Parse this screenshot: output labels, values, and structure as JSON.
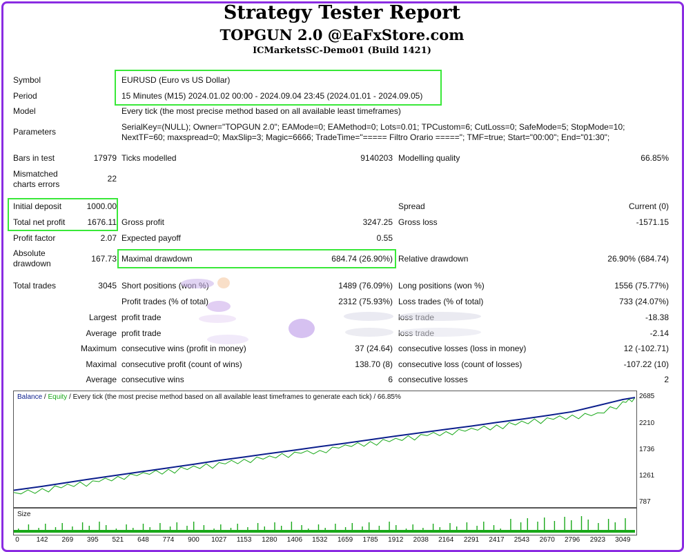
{
  "header": {
    "title": "Strategy Tester Report",
    "subtitle": "TOPGUN 2.0 @EaFxStore.com",
    "server": "ICMarketsSC-Demo01 (Build 1421)"
  },
  "info": {
    "symbol_label": "Symbol",
    "symbol_value": "EURUSD (Euro vs US Dollar)",
    "period_label": "Period",
    "period_value": "15 Minutes (M15) 2024.01.02 00:00 - 2024.09.04 23:45 (2024.01.01 - 2024.09.05)",
    "model_label": "Model",
    "model_value": "Every tick (the most precise method based on all available least timeframes)",
    "parameters_label": "Parameters",
    "parameters_line1": "SerialKey=(NULL); Owner=\"TOPGUN 2.0\"; EAMode=0; EAMethod=0; Lots=0.01; TPCustom=6; CutLoss=0; SafeMode=5; StopMode=10;",
    "parameters_line2": "NextTF=60; maxspread=0; MaxSlip=3; Magic=6666; TradeTime=\"===== Filtro Orario =====\"; TMF=true; Start=\"00:00\"; End=\"01:30\";"
  },
  "stats": {
    "bars_label": "Bars in test",
    "bars_value": "17979",
    "ticks_label": "Ticks modelled",
    "ticks_value": "9140203",
    "quality_label": "Modelling quality",
    "quality_value": "66.85%",
    "mismatch_label1": "Mismatched",
    "mismatch_label2": "charts errors",
    "mismatch_value": "22",
    "deposit_label": "Initial deposit",
    "deposit_value": "1000.00",
    "spread_label": "Spread",
    "spread_value": "Current (0)",
    "netprofit_label": "Total net profit",
    "netprofit_value": "1676.11",
    "grossprofit_label": "Gross profit",
    "grossprofit_value": "3247.25",
    "grossloss_label": "Gross loss",
    "grossloss_value": "-1571.15",
    "pf_label": "Profit factor",
    "pf_value": "2.07",
    "payoff_label": "Expected payoff",
    "payoff_value": "0.55",
    "absdd_label1": "Absolute",
    "absdd_label2": "drawdown",
    "absdd_value": "167.73",
    "maxdd_label": "Maximal drawdown",
    "maxdd_value": "684.74 (26.90%)",
    "reldd_label": "Relative drawdown",
    "reldd_value": "26.90% (684.74)"
  },
  "trades": {
    "total_label": "Total trades",
    "total_value": "3045",
    "short_label": "Short positions (won %)",
    "short_value": "1489 (76.09%)",
    "long_label": "Long positions (won %)",
    "long_value": "1556 (75.77%)",
    "profit_trades_label": "Profit trades (% of total)",
    "profit_trades_value": "2312 (75.93%)",
    "loss_trades_label": "Loss trades (% of total)",
    "loss_trades_value": "733 (24.07%)",
    "largest_label": "Largest",
    "largest_profit_label": "profit trade",
    "largest_profit_value": "",
    "largest_loss_label": "loss trade",
    "largest_loss_value": "-18.38",
    "average_label": "Average",
    "average_profit_label": "profit trade",
    "average_profit_value": "",
    "average_loss_label": "loss trade",
    "average_loss_value": "-2.14",
    "maximum_label": "Maximum",
    "max_cons_wins_label": "consecutive wins (profit in money)",
    "max_cons_wins_value": "37 (24.64)",
    "max_cons_losses_label": "consecutive losses (loss in money)",
    "max_cons_losses_value": "12 (-102.71)",
    "maximal_label": "Maximal",
    "maximal_profit_label": "consecutive profit (count of wins)",
    "maximal_profit_value": "138.70 (8)",
    "maximal_loss_label": "consecutive loss (count of losses)",
    "maximal_loss_value": "-107.22 (10)",
    "average2_label": "Average",
    "avg_cons_wins_label": "consecutive wins",
    "avg_cons_wins_value": "6",
    "avg_cons_losses_label": "consecutive losses",
    "avg_cons_losses_value": "2"
  },
  "chart_legend": {
    "balance": "Balance",
    "sep": " / ",
    "equity": "Equity",
    "desc": " / Every tick (the most precise method based on all available least timeframes to generate each tick) / 66.85%",
    "size": "Size"
  },
  "colors": {
    "balance": "#0b1e8c",
    "equity": "#18a818",
    "highlight": "#38e838",
    "frame": "#8a2be2"
  },
  "chart_data": {
    "type": "line",
    "title": "",
    "xlabel": "",
    "ylabel": "",
    "x_ticks": [
      0,
      142,
      269,
      395,
      521,
      648,
      774,
      900,
      1027,
      1153,
      1280,
      1406,
      1532,
      1659,
      1785,
      1912,
      2038,
      2164,
      2291,
      2417,
      2543,
      2670,
      2796,
      2923,
      3049
    ],
    "y_ticks": [
      787,
      1261,
      1736,
      2210,
      2685
    ],
    "xlim": [
      0,
      3110
    ],
    "ylim": [
      720,
      2790
    ],
    "series": [
      {
        "name": "Balance",
        "x": [
          0,
          142,
          269,
          395,
          521,
          648,
          774,
          900,
          1027,
          1153,
          1280,
          1406,
          1532,
          1659,
          1785,
          1912,
          2038,
          2164,
          2291,
          2417,
          2543,
          2670,
          2796,
          2923,
          3049,
          3110
        ],
        "values": [
          1000,
          1070,
          1140,
          1210,
          1275,
          1340,
          1405,
          1470,
          1540,
          1600,
          1665,
          1725,
          1790,
          1850,
          1915,
          1980,
          2040,
          2100,
          2160,
          2225,
          2285,
          2350,
          2420,
          2530,
          2640,
          2676
        ]
      },
      {
        "name": "Equity",
        "x": [
          0,
          142,
          269,
          395,
          521,
          648,
          774,
          900,
          1027,
          1153,
          1280,
          1406,
          1532,
          1659,
          1785,
          1912,
          2038,
          2164,
          2291,
          2417,
          2543,
          2670,
          2796,
          2923,
          3049,
          3110
        ],
        "values": [
          960,
          1030,
          1110,
          1170,
          1250,
          1320,
          1380,
          1440,
          1500,
          1560,
          1620,
          1690,
          1720,
          1820,
          1880,
          1940,
          2010,
          2060,
          2120,
          2180,
          2250,
          2310,
          2360,
          2400,
          2600,
          2676
        ]
      }
    ],
    "size_series": {
      "name": "Size",
      "values": [
        1
      ]
    }
  }
}
